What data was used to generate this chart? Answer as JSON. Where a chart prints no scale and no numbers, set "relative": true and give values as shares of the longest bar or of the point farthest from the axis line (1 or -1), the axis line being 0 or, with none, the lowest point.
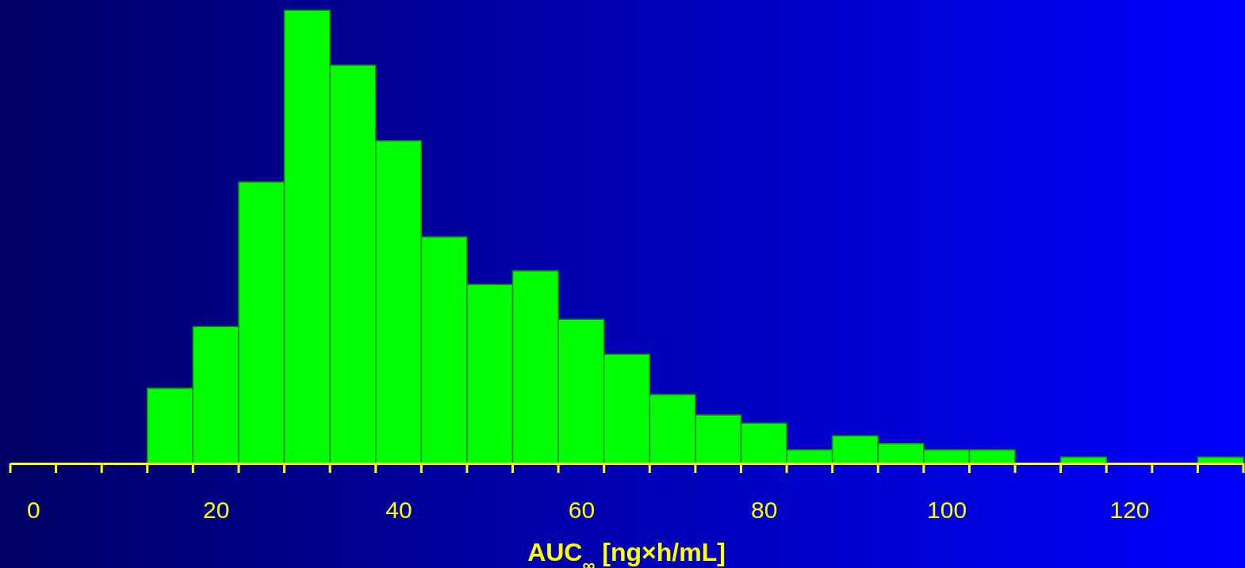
{
  "chart_data": {
    "type": "bar",
    "xlabel": "AUC$_{∞}$ [ng×h/mL]",
    "relative": true,
    "color": "#00ff00",
    "x": [
      15,
      20,
      25,
      30,
      35,
      40,
      45,
      50,
      55,
      60,
      65,
      70,
      75,
      80,
      85,
      90,
      95,
      100,
      105,
      110,
      115,
      120,
      125,
      130
    ],
    "values": [
      0.166,
      0.302,
      0.621,
      1,
      0.879,
      0.712,
      0.5,
      0.395,
      0.425,
      0.318,
      0.241,
      0.152,
      0.107,
      0.089,
      0.03,
      0.061,
      0.044,
      0.03,
      0.03,
      0,
      0.014,
      0,
      0,
      0.014
    ],
    "xlim": [
      -2.5,
      132.5
    ],
    "xticks": [
      {
        "value": -2.5,
        "label": null
      },
      0,
      {
        "value": 2.5,
        "label": null
      },
      {
        "value": 7.5,
        "label": null
      },
      {
        "value": 12.5,
        "label": null
      },
      {
        "value": 17.5,
        "label": null
      },
      20,
      {
        "value": 22.5,
        "label": null
      },
      {
        "value": 27.5,
        "label": null
      },
      {
        "value": 32.5,
        "label": null
      },
      {
        "value": 37.5,
        "label": null
      },
      40,
      {
        "value": 42.5,
        "label": null
      },
      {
        "value": 47.5,
        "label": null
      },
      {
        "value": 52.5,
        "label": null
      },
      {
        "value": 57.5,
        "label": null
      },
      60,
      {
        "value": 62.5,
        "label": null
      },
      {
        "value": 67.5,
        "label": null
      },
      {
        "value": 72.5,
        "label": null
      },
      {
        "value": 77.5,
        "label": null
      },
      80,
      {
        "value": 82.5,
        "label": null
      },
      {
        "value": 87.5,
        "label": null
      },
      {
        "value": 92.5,
        "label": null
      },
      {
        "value": 97.5,
        "label": null
      },
      100,
      {
        "value": 102.5,
        "label": null
      },
      {
        "value": 107.5,
        "label": null
      },
      {
        "value": 112.5,
        "label": null
      },
      {
        "value": 117.5,
        "label": null
      },
      120,
      {
        "value": 122.5,
        "label": null
      },
      {
        "value": 127.5,
        "label": null
      },
      {
        "value": 132.5,
        "label": null
      }
    ]
  }
}
